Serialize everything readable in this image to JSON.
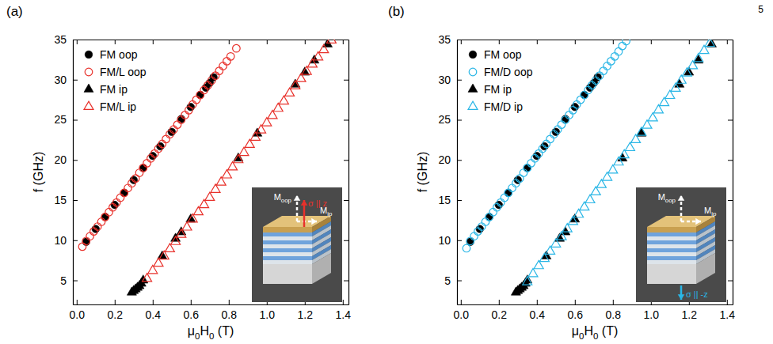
{
  "page_number": "5",
  "chart_data": [
    {
      "type": "scatter",
      "panel_label": "(a)",
      "x_label": "μ0H0 (T)",
      "y_label": "f (GHz)",
      "xlim": [
        -0.02,
        1.43
      ],
      "ylim": [
        2,
        35
      ],
      "xticks": [
        {
          "value": 0,
          "label": "0.0"
        },
        0.2,
        0.4,
        0.6,
        0.8,
        {
          "value": 1,
          "label": "1.0"
        },
        1.2,
        1.4
      ],
      "yticks": [
        5,
        10,
        15,
        20,
        25,
        30,
        35
      ],
      "legend": "upper left",
      "annotations": [
        "Moop",
        "Mip",
        "σ || z"
      ],
      "series": [
        {
          "name": "FM oop",
          "color": "#000000",
          "marker": "circle",
          "x": [
            0.05,
            0.1,
            0.15,
            0.2,
            0.25,
            0.3,
            0.35,
            0.4,
            0.44,
            0.5,
            0.55,
            0.6,
            0.65,
            0.68,
            0.7,
            0.72
          ],
          "values": [
            9.8,
            11.4,
            12.9,
            14.4,
            15.9,
            17.5,
            19.0,
            20.5,
            21.7,
            23.5,
            25.1,
            26.6,
            28.1,
            29.0,
            29.6,
            30.3
          ]
        },
        {
          "name": "FM/L oop",
          "color": "#e8312b",
          "marker": "open-circle",
          "x": [
            0.03,
            0.05,
            0.07,
            0.09,
            0.11,
            0.13,
            0.15,
            0.17,
            0.19,
            0.21,
            0.23,
            0.25,
            0.27,
            0.29,
            0.31,
            0.33,
            0.35,
            0.37,
            0.39,
            0.41,
            0.43,
            0.45,
            0.47,
            0.49,
            0.51,
            0.53,
            0.55,
            0.57,
            0.59,
            0.61,
            0.63,
            0.65,
            0.67,
            0.69,
            0.71,
            0.73,
            0.75,
            0.77,
            0.79,
            0.81,
            0.84
          ],
          "values": [
            9.2,
            9.9,
            10.5,
            11.1,
            11.7,
            12.3,
            12.9,
            13.5,
            14.1,
            14.7,
            15.3,
            15.9,
            16.5,
            17.1,
            17.7,
            18.4,
            19.0,
            19.6,
            20.2,
            20.8,
            21.4,
            22.0,
            22.6,
            23.2,
            23.8,
            24.4,
            25.0,
            25.6,
            26.2,
            26.9,
            27.5,
            28.1,
            28.7,
            29.3,
            29.9,
            30.5,
            31.1,
            31.7,
            32.3,
            32.9,
            33.9
          ]
        },
        {
          "name": "FM ip",
          "color": "#000000",
          "marker": "triangle",
          "x": [
            0.29,
            0.3,
            0.31,
            0.32,
            0.33,
            0.34,
            0.35,
            0.45,
            0.52,
            0.55,
            0.6,
            0.85,
            0.95,
            1.15,
            1.2,
            1.25,
            1.32
          ],
          "values": [
            3.5,
            3.7,
            3.9,
            4.1,
            4.3,
            4.6,
            5.0,
            8.0,
            10.2,
            11.0,
            12.6,
            20.2,
            23.3,
            29.4,
            30.9,
            32.4,
            34.4
          ]
        },
        {
          "name": "FM/L ip",
          "color": "#e8312b",
          "marker": "open-triangle",
          "x": [
            0.37,
            0.4,
            0.43,
            0.46,
            0.49,
            0.52,
            0.55,
            0.58,
            0.61,
            0.64,
            0.67,
            0.7,
            0.73,
            0.76,
            0.79,
            0.82,
            0.85,
            0.88,
            0.91,
            0.94,
            0.97,
            1.0,
            1.03,
            1.06,
            1.09,
            1.12,
            1.15,
            1.18,
            1.21,
            1.24,
            1.27,
            1.3,
            1.34
          ],
          "values": [
            5.2,
            6.2,
            7.1,
            8.0,
            8.9,
            9.8,
            10.7,
            11.6,
            12.6,
            13.5,
            14.4,
            15.3,
            16.3,
            17.2,
            18.1,
            19.1,
            20.0,
            20.9,
            21.9,
            22.8,
            23.7,
            24.6,
            25.5,
            26.4,
            27.3,
            28.3,
            29.2,
            30.1,
            31.0,
            31.9,
            32.8,
            33.7,
            34.9
          ]
        }
      ]
    },
    {
      "type": "scatter",
      "panel_label": "(b)",
      "x_label": "μ0H0 (T)",
      "y_label": "f (GHz)",
      "xlim": [
        -0.02,
        1.43
      ],
      "ylim": [
        2,
        35
      ],
      "xticks": [
        {
          "value": 0,
          "label": "0.0"
        },
        0.2,
        0.4,
        0.6,
        0.8,
        {
          "value": 1,
          "label": "1.0"
        },
        1.2,
        1.4
      ],
      "yticks": [
        5,
        10,
        15,
        20,
        25,
        30,
        35
      ],
      "legend": "upper left",
      "annotations": [
        "Moop",
        "Mip",
        "σ || -z"
      ],
      "series": [
        {
          "name": "FM oop",
          "color": "#000000",
          "marker": "circle",
          "x": [
            0.05,
            0.1,
            0.15,
            0.2,
            0.25,
            0.3,
            0.35,
            0.4,
            0.44,
            0.5,
            0.55,
            0.6,
            0.65,
            0.68,
            0.7,
            0.72
          ],
          "values": [
            9.8,
            11.4,
            12.9,
            14.4,
            15.9,
            17.5,
            19.0,
            20.5,
            21.7,
            23.5,
            25.1,
            26.6,
            28.1,
            29.0,
            29.6,
            30.3
          ]
        },
        {
          "name": "FM/D oop",
          "color": "#29b6e6",
          "marker": "open-circle",
          "x": [
            0.03,
            0.05,
            0.07,
            0.09,
            0.11,
            0.13,
            0.15,
            0.17,
            0.19,
            0.21,
            0.23,
            0.25,
            0.27,
            0.29,
            0.31,
            0.33,
            0.35,
            0.37,
            0.39,
            0.41,
            0.43,
            0.45,
            0.47,
            0.49,
            0.51,
            0.53,
            0.55,
            0.57,
            0.59,
            0.61,
            0.63,
            0.65,
            0.67,
            0.69,
            0.71,
            0.73,
            0.75,
            0.77,
            0.79,
            0.81,
            0.83,
            0.85,
            0.87
          ],
          "values": [
            9.0,
            9.9,
            10.5,
            11.1,
            11.7,
            12.3,
            12.9,
            13.5,
            14.1,
            14.7,
            15.3,
            15.9,
            16.5,
            17.1,
            17.7,
            18.4,
            19.0,
            19.6,
            20.2,
            20.8,
            21.4,
            22.0,
            22.6,
            23.2,
            23.8,
            24.4,
            25.0,
            25.6,
            26.2,
            26.9,
            27.5,
            28.1,
            28.7,
            29.3,
            29.9,
            30.5,
            31.1,
            31.7,
            32.3,
            32.9,
            33.5,
            34.2,
            34.8
          ]
        },
        {
          "name": "FM ip",
          "color": "#000000",
          "marker": "triangle",
          "x": [
            0.29,
            0.3,
            0.31,
            0.32,
            0.33,
            0.34,
            0.35,
            0.45,
            0.52,
            0.55,
            0.6,
            0.85,
            0.95,
            1.15,
            1.2,
            1.25,
            1.32
          ],
          "values": [
            3.5,
            3.7,
            3.9,
            4.1,
            4.3,
            4.6,
            5.0,
            8.0,
            10.2,
            11.0,
            12.6,
            20.2,
            23.3,
            29.4,
            30.9,
            32.4,
            34.4
          ]
        },
        {
          "name": "FM/D ip",
          "color": "#29b6e6",
          "marker": "open-triangle",
          "x": [
            0.35,
            0.38,
            0.41,
            0.44,
            0.47,
            0.5,
            0.53,
            0.56,
            0.59,
            0.62,
            0.65,
            0.68,
            0.71,
            0.74,
            0.77,
            0.8,
            0.83,
            0.86,
            0.89,
            0.92,
            0.95,
            0.98,
            1.01,
            1.04,
            1.07,
            1.1,
            1.13,
            1.16,
            1.19,
            1.22,
            1.25,
            1.28,
            1.31
          ],
          "values": [
            4.8,
            5.8,
            6.8,
            7.7,
            8.6,
            9.5,
            10.4,
            11.4,
            12.3,
            13.2,
            14.1,
            15.0,
            16.0,
            16.9,
            17.8,
            18.7,
            19.7,
            20.6,
            21.5,
            22.5,
            23.4,
            24.3,
            25.2,
            26.2,
            27.1,
            28.0,
            28.9,
            29.9,
            30.8,
            31.7,
            32.6,
            33.6,
            34.5
          ]
        }
      ]
    }
  ]
}
